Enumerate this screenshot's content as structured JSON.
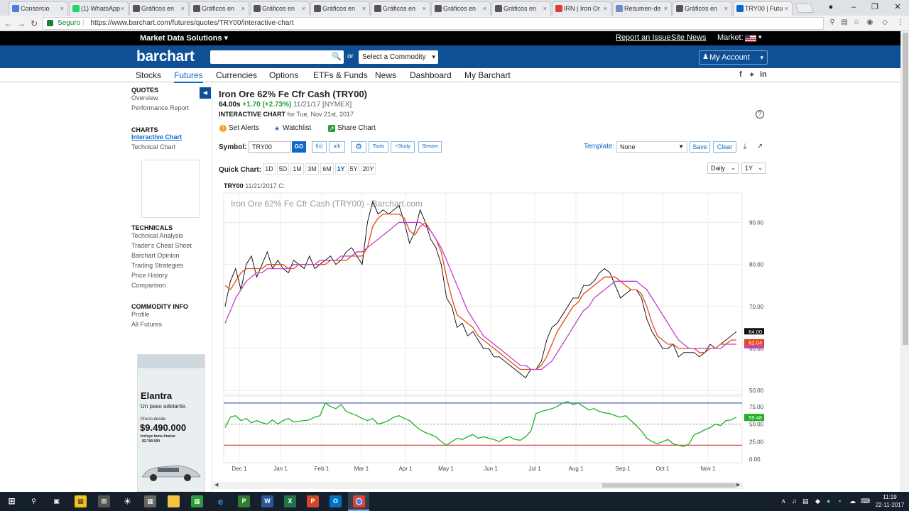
{
  "browser": {
    "tabs": [
      {
        "label": "Consorcio",
        "icon": "document-icon",
        "color": "#4a7fd8"
      },
      {
        "label": "(1) WhatsApp",
        "icon": "whatsapp-icon",
        "color": "#25d366"
      },
      {
        "label": "Gráficos en",
        "icon": "investing-icon",
        "color": "#555555"
      },
      {
        "label": "Gráficos en",
        "icon": "investing-icon",
        "color": "#555555"
      },
      {
        "label": "Gráficos en",
        "icon": "investing-icon",
        "color": "#555555"
      },
      {
        "label": "Gráficos en",
        "icon": "investing-icon",
        "color": "#555555"
      },
      {
        "label": "Gráficos en",
        "icon": "investing-icon",
        "color": "#555555"
      },
      {
        "label": "Gráficos en",
        "icon": "investing-icon",
        "color": "#555555"
      },
      {
        "label": "Gráficos en",
        "icon": "investing-icon",
        "color": "#555555"
      },
      {
        "label": "IRN | Iron Or",
        "icon": "ig-icon",
        "color": "#e03b2e"
      },
      {
        "label": "Resumen-de",
        "icon": "image-icon",
        "color": "#6b8ec9"
      },
      {
        "label": "Gráficos en",
        "icon": "investing-icon",
        "color": "#555555"
      },
      {
        "label": "TRY00 | Futu",
        "icon": "barchart-icon",
        "color": "#0e68c8"
      }
    ],
    "secure_label": "Seguro",
    "url": "https://www.barchart.com/futures/quotes/TRY00/interactive-chart"
  },
  "header": {
    "market_data_solutions": "Market Data Solutions",
    "report_issue": "Report an Issue",
    "site_news": "Site News",
    "market_label": "Market:",
    "logo": "barchart",
    "or_label": "or",
    "commodity_select": "Select a Commodity",
    "my_account": "My Account",
    "brand_color": "#0e4f95"
  },
  "nav": {
    "items": [
      "Stocks",
      "Futures",
      "Currencies",
      "Options",
      "ETFs & Funds",
      "News",
      "Dashboard",
      "My Barchart"
    ],
    "active_index": 1
  },
  "sidebar": {
    "quotes_title": "QUOTES",
    "overview": "Overview",
    "performance": "Performance Report",
    "charts_title": "CHARTS",
    "interactive": "Interactive Chart",
    "technical": "Technical Chart",
    "technicals_title": "TECHNICALS",
    "tech_items": [
      "Technical Analysis",
      "Trader's Cheat Sheet",
      "Barchart Opinion",
      "Trading Strategies",
      "Price History",
      "Comparison"
    ],
    "commodity_title": "COMMODITY INFO",
    "profile": "Profile",
    "all_futures": "All Futures",
    "ad": {
      "title": "Elantra",
      "tagline": "Un paso adelante.",
      "from": "Precio desde",
      "price": "$9.490.000",
      "bono1": "Incluye bono Amicar",
      "bono2": "$2.700.000"
    }
  },
  "quote": {
    "title": "Iron Ore 62% Fe Cfr Cash (TRY00)",
    "last": "64.00s",
    "change": "+1.70 (+2.73%)",
    "date": "11/21/17 [NYMEX]",
    "subtitle_bold": "INTERACTIVE CHART",
    "subtitle_rest": "for Tue, Nov 21st, 2017"
  },
  "actions": {
    "alerts": "Set Alerts",
    "watchlist": "Watchlist",
    "share": "Share Chart"
  },
  "toolbar": {
    "symbol_label": "Symbol:",
    "symbol_value": "TRY00",
    "go": "GO",
    "fx": "f(x)",
    "ab": "a/b",
    "tools": "Tools",
    "study": "+Study",
    "stream": "Stream",
    "template_label": "Template:",
    "template_value": "None",
    "save": "Save",
    "clear": "Clear"
  },
  "quick_chart": {
    "label": "Quick Chart:",
    "ranges": [
      "1D",
      "5D",
      "1M",
      "3M",
      "6M",
      "1Y",
      "5Y",
      "20Y"
    ],
    "selected_index": 5,
    "interval": "Daily",
    "period": "1Y"
  },
  "chart_head": {
    "symbol": "TRY00",
    "rest": "11/21/2017 C:"
  },
  "chart_data": {
    "type": "line",
    "title": "Iron Ore 62% Fe Cfr Cash (TRY00) - Barchart.com",
    "x_tick_labels": [
      "Dec 1",
      "Jan 1",
      "Feb 1",
      "Mar 1",
      "Apr 1",
      "May 1",
      "Jun 1",
      "Jul 1",
      "Aug 1",
      "Sep 1",
      "Oct 1",
      "Nov 1"
    ],
    "price_panel": {
      "y_ticks": [
        "90.00",
        "80.00",
        "70.00",
        "60.00",
        "50.00"
      ],
      "ylim": [
        49,
        97
      ],
      "y_tick_values": [
        90,
        80,
        70,
        60,
        50
      ],
      "last_price_label": "64.00",
      "ma_label": "62.04",
      "series": [
        {
          "kind": "price",
          "color": "#000000",
          "values": [
            70,
            76,
            79,
            74,
            80,
            82,
            77,
            80,
            83,
            79,
            81,
            79,
            78,
            81,
            80,
            79,
            82,
            79,
            80,
            81,
            82,
            80,
            81,
            83,
            84,
            82,
            80,
            90,
            95,
            92,
            93,
            92,
            93,
            94,
            90,
            85,
            88,
            93,
            90,
            86,
            84,
            80,
            72,
            70,
            65,
            66,
            63,
            64,
            62,
            60,
            60,
            58,
            58,
            57,
            56,
            55,
            54,
            53,
            55,
            55,
            57,
            62,
            65,
            66,
            68,
            70,
            72,
            72,
            75,
            75,
            76,
            78,
            79,
            78,
            75,
            72,
            73,
            74,
            74,
            72,
            67,
            64,
            62,
            60,
            60,
            61,
            58,
            59,
            59,
            59,
            58,
            59,
            61,
            60,
            61,
            62,
            63,
            64
          ]
        },
        {
          "kind": "ma-short",
          "color": "#e8471c",
          "values": [
            75,
            74,
            76,
            78,
            79,
            79,
            79,
            79,
            80,
            80,
            80,
            80,
            79,
            79,
            80,
            80,
            80,
            80,
            80,
            80,
            81,
            81,
            81,
            81,
            82,
            82,
            82,
            84,
            89,
            91,
            92,
            92,
            92,
            92,
            91,
            88,
            87,
            89,
            90,
            88,
            86,
            83,
            77,
            72,
            68,
            67,
            66,
            65,
            63,
            62,
            61,
            60,
            59,
            58,
            57,
            56,
            55,
            55,
            55,
            55,
            56,
            58,
            61,
            64,
            66,
            68,
            70,
            71,
            73,
            74,
            75,
            76,
            77,
            77,
            77,
            76,
            75,
            74,
            74,
            73,
            70,
            66,
            63,
            62,
            61,
            61,
            60,
            60,
            60,
            60,
            59,
            59,
            60,
            60,
            61,
            61,
            62,
            62
          ]
        },
        {
          "kind": "ma-long",
          "color": "#c040c8",
          "values": [
            66,
            69,
            72,
            74,
            76,
            77,
            78,
            78,
            79,
            79,
            79,
            79,
            79,
            80,
            80,
            80,
            80,
            80,
            81,
            81,
            81,
            81,
            82,
            82,
            82,
            83,
            83,
            84,
            85,
            86,
            87,
            88,
            89,
            90,
            90,
            90,
            90,
            90,
            89,
            88,
            86,
            84,
            81,
            78,
            75,
            72,
            69,
            67,
            65,
            63,
            62,
            61,
            60,
            59,
            58,
            57,
            56,
            56,
            55,
            55,
            55,
            56,
            57,
            59,
            61,
            63,
            65,
            67,
            69,
            70,
            72,
            73,
            74,
            75,
            76,
            76,
            76,
            76,
            76,
            75,
            74,
            72,
            70,
            68,
            66,
            64,
            62,
            61,
            60,
            60,
            60,
            60,
            60,
            60,
            60,
            61,
            61,
            61
          ]
        }
      ]
    },
    "indicator_panel": {
      "y_ticks": [
        "75.00",
        "50.00",
        "25.00",
        "0.00"
      ],
      "ylim": [
        -5,
        90
      ],
      "y_tick_values": [
        75,
        50,
        25,
        0
      ],
      "upper_line": 80,
      "lower_line": 20,
      "last_value_label": "59.48",
      "series": [
        {
          "kind": "rsi",
          "color": "#20b020",
          "values": [
            45,
            60,
            62,
            55,
            58,
            52,
            55,
            52,
            50,
            56,
            50,
            55,
            58,
            53,
            54,
            55,
            56,
            60,
            62,
            80,
            75,
            72,
            78,
            68,
            65,
            62,
            58,
            55,
            58,
            50,
            52,
            55,
            60,
            62,
            58,
            55,
            48,
            42,
            38,
            35,
            32,
            25,
            20,
            25,
            30,
            28,
            32,
            35,
            30,
            32,
            30,
            28,
            25,
            30,
            32,
            28,
            27,
            32,
            40,
            65,
            68,
            70,
            72,
            75,
            80,
            82,
            78,
            80,
            75,
            70,
            72,
            68,
            66,
            65,
            62,
            60,
            62,
            55,
            48,
            40,
            30,
            25,
            22,
            25,
            28,
            22,
            20,
            18,
            22,
            35,
            38,
            42,
            45,
            50,
            48,
            55,
            56,
            60
          ]
        }
      ]
    }
  },
  "taskbar": {
    "time": "11:19",
    "date": "22-11-2017"
  }
}
